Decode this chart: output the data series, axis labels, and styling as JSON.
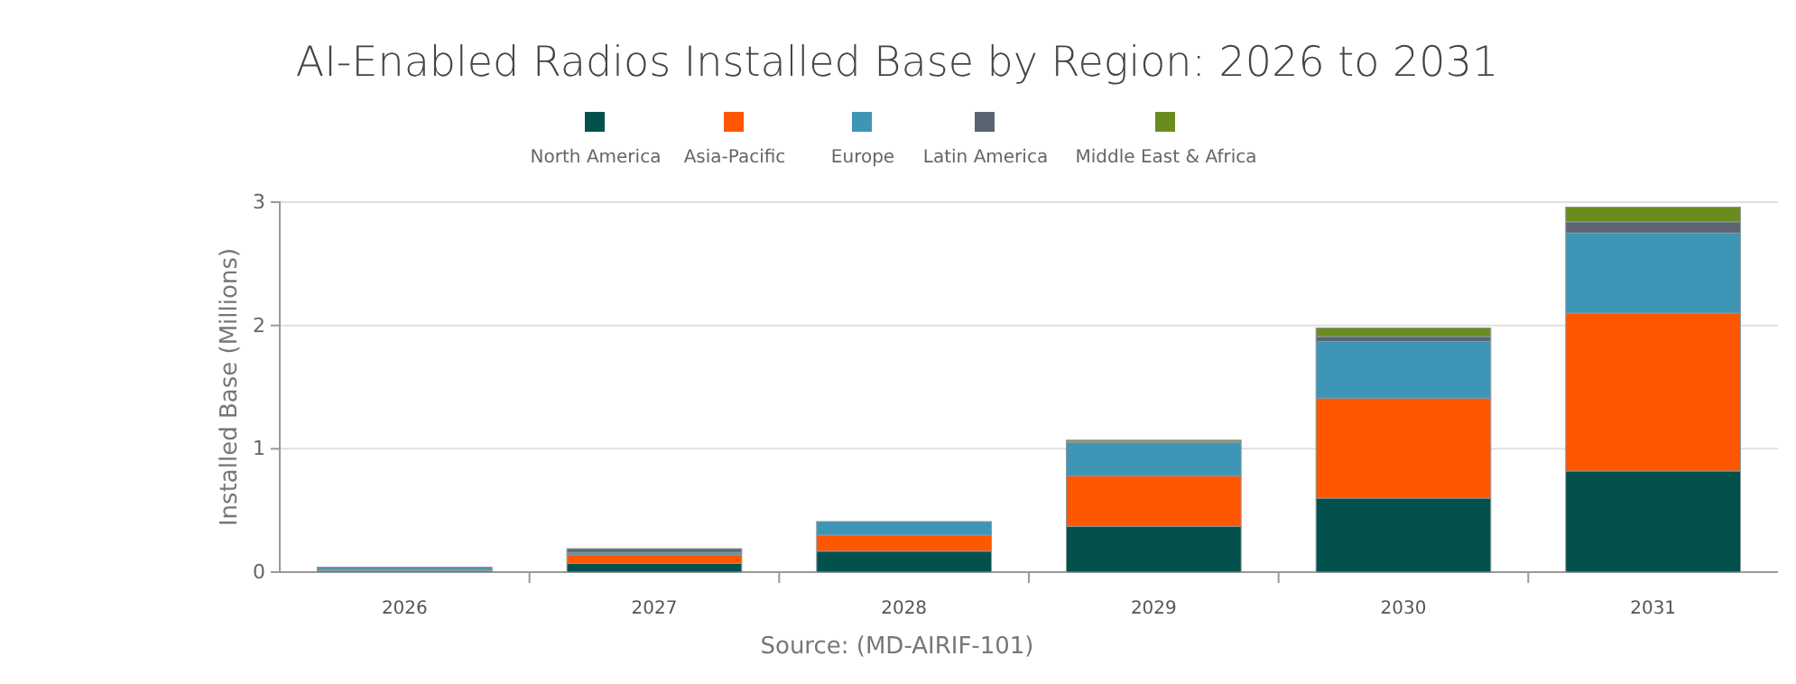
{
  "chart_data": {
    "type": "bar",
    "title": "AI-Enabled Radios Installed Base by Region: 2026 to 2031",
    "ylabel": "Installed Base (Millions)",
    "annotations": [
      "Source: (MD-AIRIF-101)"
    ],
    "categories": [
      "2026",
      "2027",
      "2028",
      "2029",
      "2030",
      "2031"
    ],
    "stacked": true,
    "series": [
      {
        "name": "North America",
        "color": "#03514c",
        "values": [
          0.01,
          0.07,
          0.17,
          0.37,
          0.6,
          0.82
        ]
      },
      {
        "name": "Asia-Pacific",
        "color": "#ff5600",
        "values": [
          0.01,
          0.07,
          0.13,
          0.41,
          0.81,
          1.28
        ]
      },
      {
        "name": "Europe",
        "color": "#3f95b5",
        "values": [
          0.02,
          0.02,
          0.11,
          0.27,
          0.46,
          0.65
        ]
      },
      {
        "name": "Latin America",
        "color": "#5b6571",
        "values": [
          0,
          0.03,
          0,
          0.01,
          0.04,
          0.09
        ]
      },
      {
        "name": "Middle East & Africa",
        "color": "#6a8c1e",
        "values": [
          0,
          0,
          0,
          0.01,
          0.07,
          0.12
        ]
      }
    ],
    "ylim": [
      0,
      3
    ],
    "yticks": [
      0,
      1,
      2,
      3
    ],
    "grid": "y",
    "legend": "top"
  }
}
